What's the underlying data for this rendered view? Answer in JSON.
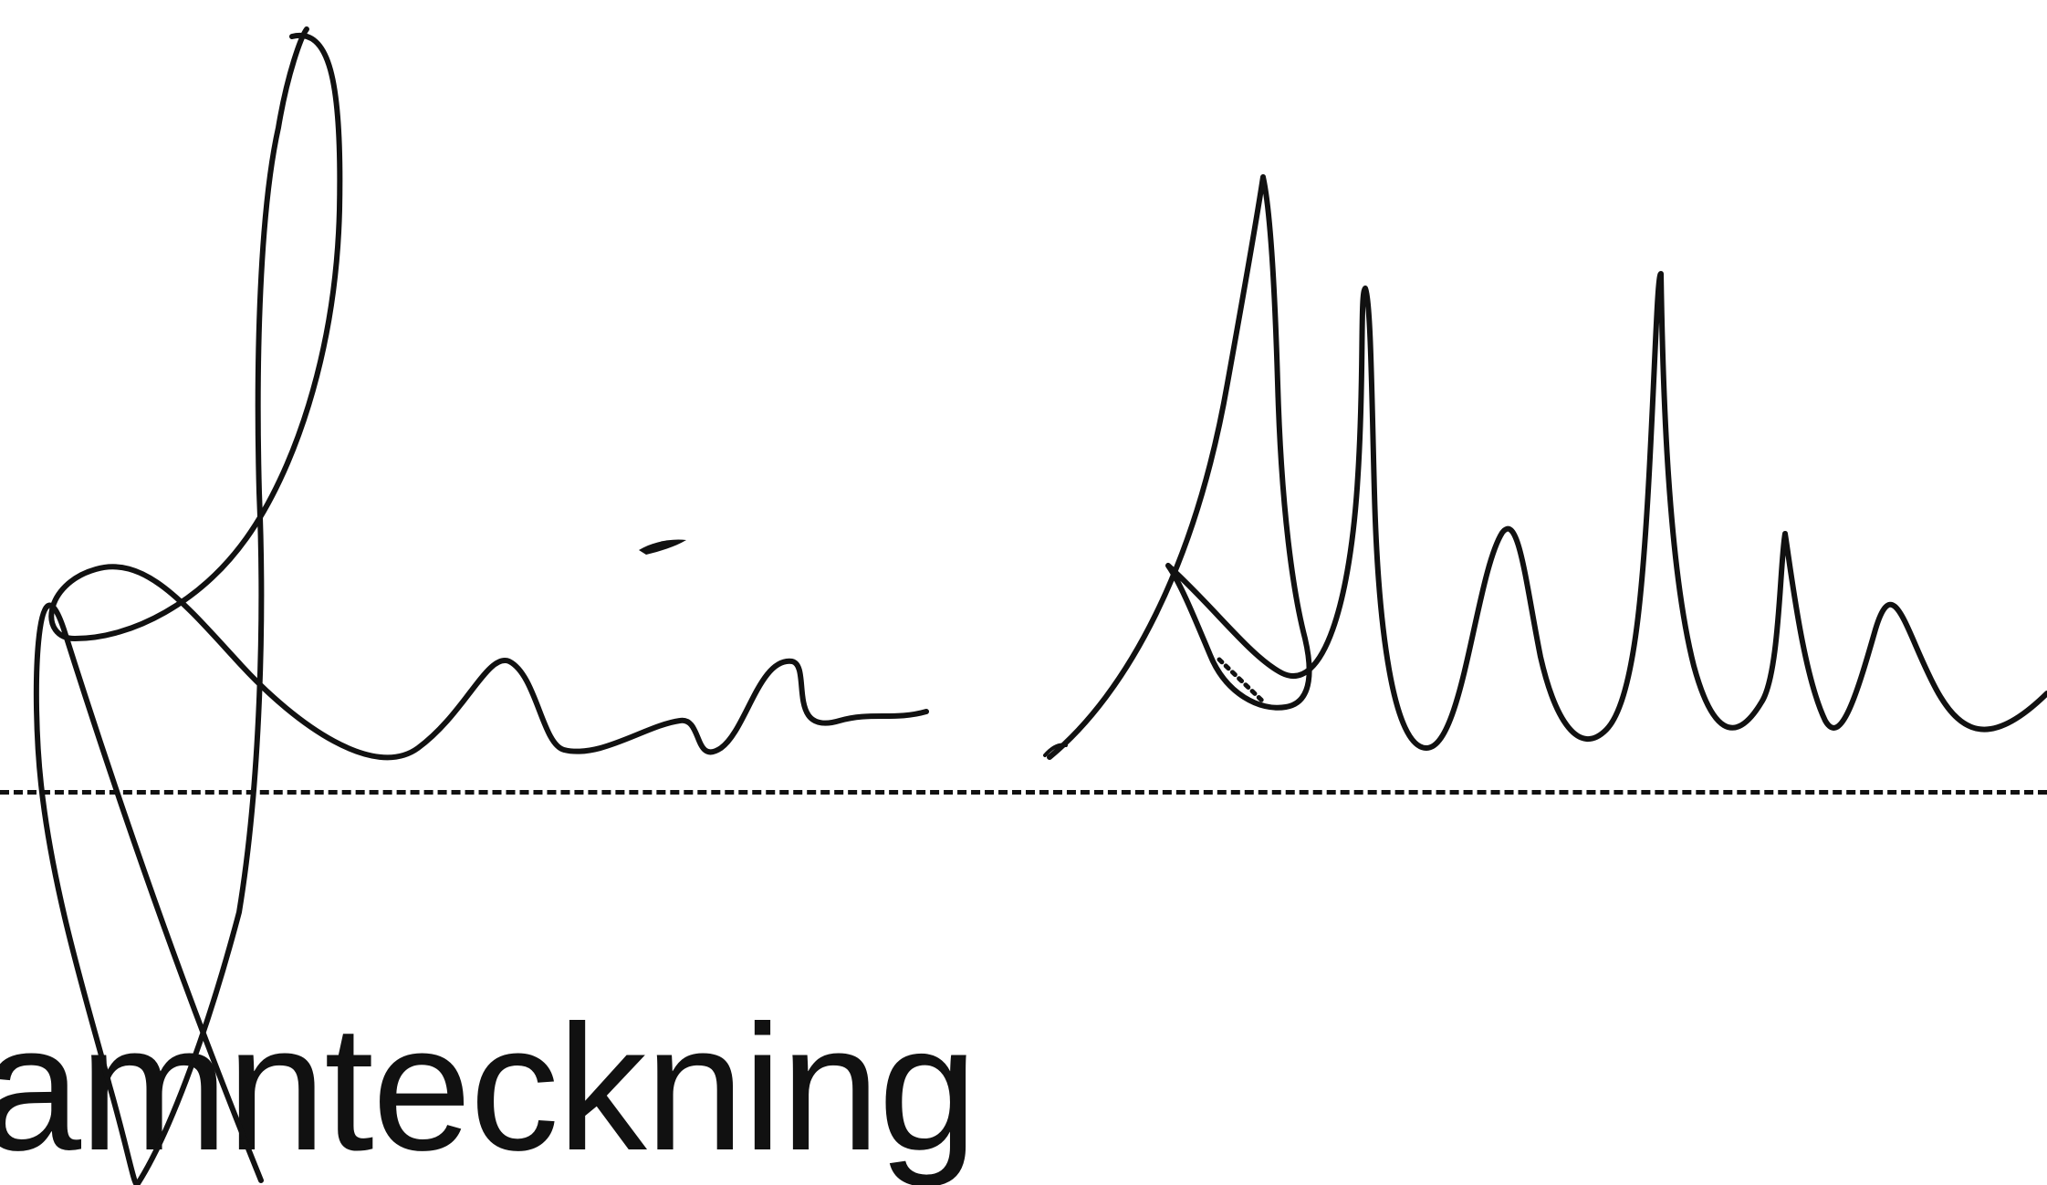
{
  "document": {
    "caption": "amnteckning",
    "signature": {
      "kind": "handwritten-signature",
      "ink_color": "#111111"
    },
    "line_style": "dashed"
  }
}
